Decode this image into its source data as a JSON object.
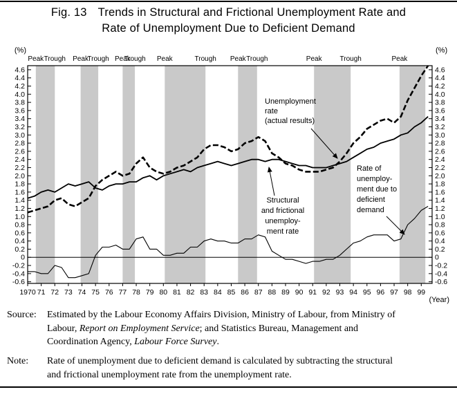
{
  "title": {
    "fig": "Fig. 13",
    "line1": "Trends in Structural and Frictional Unemployment Rate and",
    "line2": "Rate of Unemployment Due to Deficient Demand"
  },
  "axes": {
    "y_unit_left": "(%)",
    "y_unit_right": "(%)",
    "x_unit": "(Year)",
    "y_ticks": [
      4.6,
      4.4,
      4.2,
      4.0,
      3.8,
      3.6,
      3.4,
      3.2,
      3.0,
      2.8,
      2.6,
      2.4,
      2.2,
      2.0,
      1.8,
      1.6,
      1.4,
      1.2,
      1.0,
      0.8,
      0.6,
      0.4,
      0.2,
      0,
      -0.2,
      -0.4,
      -0.6
    ],
    "x_tick_labels": [
      "1970",
      "71",
      "72",
      "73",
      "74",
      "75",
      "76",
      "77",
      "78",
      "79",
      "80",
      "81",
      "82",
      "83",
      "84",
      "85",
      "86",
      "87",
      "88",
      "89",
      "90",
      "91",
      "92",
      "93",
      "94",
      "95",
      "96",
      "97",
      "98",
      "99"
    ]
  },
  "cycle_labels": [
    {
      "label": "Peak",
      "x": 1970.6
    },
    {
      "label": "Trough",
      "x": 1972.0
    },
    {
      "label": "Peak",
      "x": 1973.9
    },
    {
      "label": "Trough",
      "x": 1975.2
    },
    {
      "label": "Peak",
      "x": 1977.0
    },
    {
      "label": "Trough",
      "x": 1977.9
    },
    {
      "label": "Peak",
      "x": 1980.1
    },
    {
      "label": "Trough",
      "x": 1983.1
    },
    {
      "label": "Peak",
      "x": 1985.5
    },
    {
      "label": "Trough",
      "x": 1986.9
    },
    {
      "label": "Peak",
      "x": 1991.1
    },
    {
      "label": "Trough",
      "x": 1993.8
    },
    {
      "label": "Peak",
      "x": 1997.4
    }
  ],
  "recession_bands": [
    [
      1970.6,
      1972.0
    ],
    [
      1973.9,
      1975.2
    ],
    [
      1977.0,
      1977.9
    ],
    [
      1980.1,
      1983.1
    ],
    [
      1985.5,
      1986.9
    ],
    [
      1991.1,
      1993.8
    ],
    [
      1997.4,
      1999.3
    ]
  ],
  "annotations": {
    "unemployment": {
      "lines": [
        "Unemployment",
        "rate",
        "(actual results)"
      ]
    },
    "structural": {
      "lines": [
        "Structural",
        "and frictional",
        "unemploy-",
        "ment rate"
      ]
    },
    "deficient": {
      "lines": [
        "Rate of",
        "unemploy-",
        "ment due to",
        "deficient",
        "demand"
      ]
    }
  },
  "source": {
    "label": "Source:",
    "line1": "Estimated by the Labour Economy Affairs Division, Ministry of Labour, from Ministry of",
    "line2_pre": "Labour, ",
    "line2_italic": "Report on Employment Service",
    "line2_post": "; and Statistics Bureau, Management and",
    "line3_pre": "Coordination Agency, ",
    "line3_italic": "Labour Force Survey",
    "line3_post": "."
  },
  "note": {
    "label": "Note:",
    "line1": "Rate of unemployment due to deficient demand is calculated by subtracting the structural",
    "line2": "and frictional unemployment rate from the unemployment rate."
  },
  "colors": {
    "band": "#c9c9c9",
    "line": "#000000",
    "background": "#ffffff"
  },
  "chart_data": {
    "type": "line",
    "title": "Trends in Structural and Frictional Unemployment Rate and Rate of Unemployment Due to Deficient Demand",
    "xlabel": "(Year)",
    "ylabel": "(%)",
    "xlim": [
      1970,
      1999.8
    ],
    "ylim": [
      -0.6,
      4.6
    ],
    "ytick_step": 0.2,
    "grid": false,
    "zero_line": true,
    "unit": "%",
    "x": [
      1970,
      1970.5,
      1971,
      1971.5,
      1972,
      1972.5,
      1973,
      1973.5,
      1974,
      1974.5,
      1975,
      1975.5,
      1976,
      1976.5,
      1977,
      1977.5,
      1978,
      1978.5,
      1979,
      1979.5,
      1980,
      1980.5,
      1981,
      1981.5,
      1982,
      1982.5,
      1983,
      1983.5,
      1984,
      1984.5,
      1985,
      1985.5,
      1986,
      1986.5,
      1987,
      1987.5,
      1988,
      1988.5,
      1989,
      1989.5,
      1990,
      1990.5,
      1991,
      1991.5,
      1992,
      1992.5,
      1993,
      1993.5,
      1994,
      1994.5,
      1995,
      1995.5,
      1996,
      1996.5,
      1997,
      1997.5,
      1998,
      1998.5,
      1999,
      1999.5
    ],
    "series": [
      {
        "name": "Unemployment rate (actual results)",
        "style": "dashed",
        "values": [
          1.1,
          1.15,
          1.2,
          1.25,
          1.4,
          1.45,
          1.3,
          1.25,
          1.35,
          1.45,
          1.75,
          1.9,
          2.0,
          2.1,
          2.0,
          2.05,
          2.3,
          2.45,
          2.2,
          2.1,
          2.05,
          2.1,
          2.2,
          2.25,
          2.35,
          2.45,
          2.65,
          2.75,
          2.75,
          2.7,
          2.6,
          2.65,
          2.8,
          2.85,
          2.95,
          2.85,
          2.55,
          2.45,
          2.3,
          2.25,
          2.15,
          2.1,
          2.1,
          2.1,
          2.15,
          2.2,
          2.35,
          2.55,
          2.8,
          2.95,
          3.15,
          3.25,
          3.35,
          3.4,
          3.3,
          3.45,
          3.85,
          4.15,
          4.45,
          4.7
        ]
      },
      {
        "name": "Structural and frictional unemployment rate",
        "style": "solid",
        "values": [
          1.45,
          1.5,
          1.6,
          1.65,
          1.6,
          1.7,
          1.8,
          1.75,
          1.8,
          1.85,
          1.7,
          1.65,
          1.75,
          1.8,
          1.8,
          1.85,
          1.85,
          1.95,
          2.0,
          1.9,
          2.0,
          2.05,
          2.1,
          2.15,
          2.1,
          2.2,
          2.25,
          2.3,
          2.35,
          2.3,
          2.25,
          2.3,
          2.35,
          2.4,
          2.4,
          2.35,
          2.4,
          2.4,
          2.35,
          2.3,
          2.25,
          2.25,
          2.2,
          2.2,
          2.2,
          2.25,
          2.3,
          2.35,
          2.45,
          2.55,
          2.65,
          2.7,
          2.8,
          2.85,
          2.9,
          3.0,
          3.05,
          3.2,
          3.3,
          3.45
        ]
      },
      {
        "name": "Rate of unemployment due to deficient demand",
        "style": "thin",
        "values": [
          -0.35,
          -0.35,
          -0.4,
          -0.4,
          -0.2,
          -0.25,
          -0.5,
          -0.5,
          -0.45,
          -0.4,
          0.05,
          0.25,
          0.25,
          0.3,
          0.2,
          0.2,
          0.45,
          0.5,
          0.2,
          0.2,
          0.05,
          0.05,
          0.1,
          0.1,
          0.25,
          0.25,
          0.4,
          0.45,
          0.4,
          0.4,
          0.35,
          0.35,
          0.45,
          0.45,
          0.55,
          0.5,
          0.15,
          0.05,
          -0.05,
          -0.05,
          -0.1,
          -0.15,
          -0.1,
          -0.1,
          -0.05,
          -0.05,
          0.05,
          0.2,
          0.35,
          0.4,
          0.5,
          0.55,
          0.55,
          0.55,
          0.4,
          0.45,
          0.8,
          0.95,
          1.15,
          1.25
        ]
      }
    ]
  }
}
